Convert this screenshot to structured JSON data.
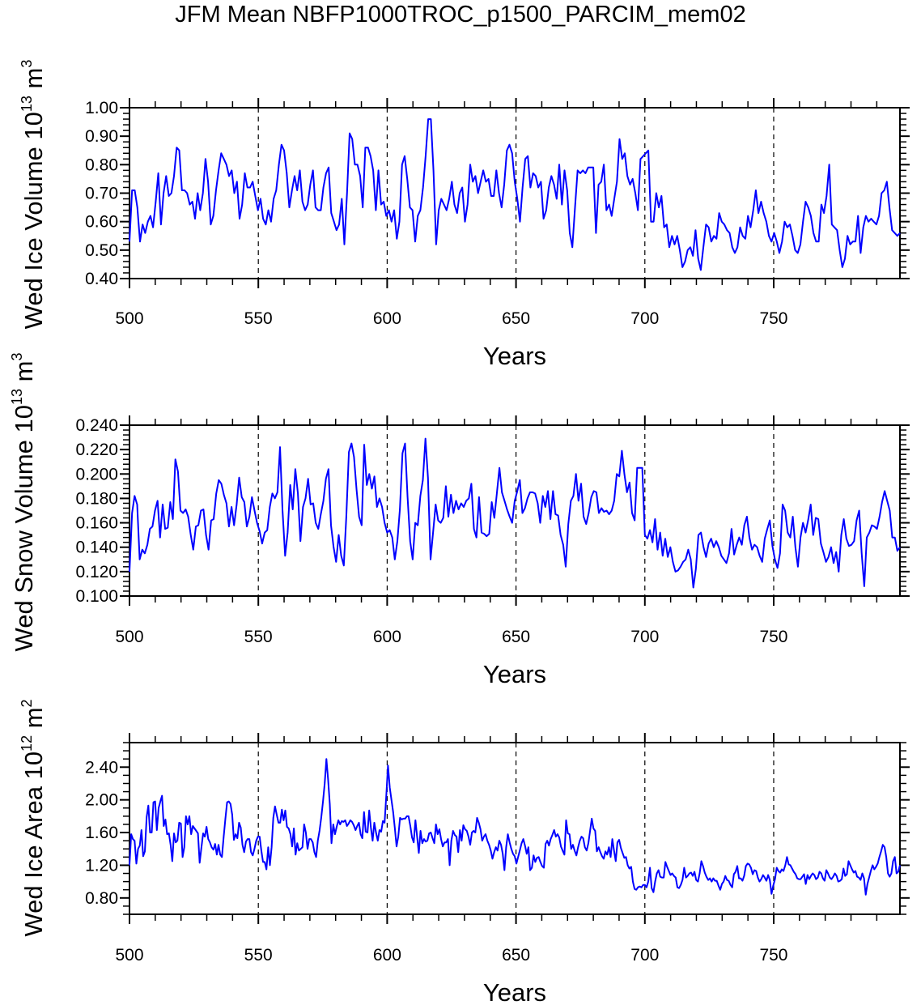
{
  "title": "JFM Mean NBFP1000TROC_p1500_PARCIM_mem02",
  "chart_data": [
    {
      "type": "line",
      "xlabel": "Years",
      "ylabel": "Wed Ice Volume 10",
      "ylabel_exp": "13",
      "ylabel_unit": " m",
      "ylabel_unit_exp": "3",
      "xlim": [
        500,
        799
      ],
      "ylim": [
        0.4,
        1.0
      ],
      "xticks": [
        500,
        550,
        600,
        650,
        700,
        750
      ],
      "xtick_labels": [
        "500",
        "550",
        "600",
        "650",
        "700",
        "750"
      ],
      "yticks": [
        0.4,
        0.5,
        0.6,
        0.7,
        0.8,
        0.9,
        1.0
      ],
      "ytick_labels": [
        "0.40",
        "0.50",
        "0.60",
        "0.70",
        "0.80",
        "0.90",
        "1.00"
      ],
      "color": "#0000ff",
      "x_start": 500,
      "values": [
        0.53,
        0.71,
        0.71,
        0.65,
        0.53,
        0.59,
        0.56,
        0.6,
        0.62,
        0.58,
        0.67,
        0.77,
        0.59,
        0.7,
        0.76,
        0.69,
        0.7,
        0.76,
        0.86,
        0.85,
        0.71,
        0.71,
        0.7,
        0.66,
        0.67,
        0.61,
        0.7,
        0.64,
        0.7,
        0.82,
        0.74,
        0.59,
        0.62,
        0.71,
        0.78,
        0.84,
        0.82,
        0.8,
        0.76,
        0.78,
        0.7,
        0.74,
        0.61,
        0.66,
        0.77,
        0.72,
        0.72,
        0.74,
        0.69,
        0.64,
        0.68,
        0.61,
        0.59,
        0.64,
        0.6,
        0.68,
        0.71,
        0.8,
        0.87,
        0.85,
        0.77,
        0.65,
        0.71,
        0.76,
        0.71,
        0.78,
        0.67,
        0.64,
        0.66,
        0.73,
        0.78,
        0.65,
        0.64,
        0.64,
        0.72,
        0.77,
        0.79,
        0.63,
        0.6,
        0.57,
        0.59,
        0.68,
        0.52,
        0.7,
        0.91,
        0.89,
        0.8,
        0.8,
        0.76,
        0.65,
        0.86,
        0.86,
        0.83,
        0.78,
        0.64,
        0.78,
        0.66,
        0.67,
        0.62,
        0.64,
        0.6,
        0.64,
        0.54,
        0.6,
        0.8,
        0.83,
        0.75,
        0.65,
        0.64,
        0.53,
        0.62,
        0.64,
        0.72,
        0.83,
        0.96,
        0.96,
        0.78,
        0.52,
        0.64,
        0.68,
        0.66,
        0.64,
        0.68,
        0.74,
        0.66,
        0.63,
        0.7,
        0.72,
        0.6,
        0.66,
        0.8,
        0.74,
        0.76,
        0.7,
        0.74,
        0.78,
        0.74,
        0.75,
        0.69,
        0.69,
        0.78,
        0.7,
        0.65,
        0.73,
        0.85,
        0.87,
        0.84,
        0.74,
        0.68,
        0.6,
        0.72,
        0.82,
        0.83,
        0.72,
        0.77,
        0.76,
        0.72,
        0.74,
        0.61,
        0.64,
        0.72,
        0.76,
        0.73,
        0.68,
        0.8,
        0.66,
        0.78,
        0.71,
        0.56,
        0.51,
        0.65,
        0.78,
        0.77,
        0.78,
        0.77,
        0.79,
        0.79,
        0.79,
        0.56,
        0.73,
        0.74,
        0.8,
        0.64,
        0.66,
        0.62,
        0.68,
        0.74,
        0.89,
        0.82,
        0.84,
        0.76,
        0.73,
        0.75,
        0.7,
        0.64,
        0.82,
        0.83,
        0.84,
        0.85,
        0.6,
        0.6,
        0.7,
        0.65,
        0.69,
        0.58,
        0.59,
        0.51,
        0.55,
        0.52,
        0.55,
        0.5,
        0.44,
        0.46,
        0.5,
        0.51,
        0.48,
        0.57,
        0.47,
        0.43,
        0.51,
        0.59,
        0.58,
        0.53,
        0.55,
        0.54,
        0.63,
        0.6,
        0.59,
        0.57,
        0.56,
        0.51,
        0.49,
        0.51,
        0.58,
        0.55,
        0.54,
        0.62,
        0.58,
        0.64,
        0.71,
        0.63,
        0.67,
        0.63,
        0.6,
        0.55,
        0.53,
        0.56,
        0.53,
        0.49,
        0.53,
        0.6,
        0.58,
        0.59,
        0.55,
        0.5,
        0.49,
        0.52,
        0.6,
        0.67,
        0.65,
        0.62,
        0.56,
        0.53,
        0.53,
        0.66,
        0.63,
        0.69,
        0.8,
        0.59,
        0.58,
        0.57,
        0.5,
        0.44,
        0.47,
        0.55,
        0.52,
        0.53,
        0.53,
        0.62,
        0.49,
        0.58,
        0.62,
        0.6,
        0.61,
        0.6,
        0.59,
        0.62,
        0.7,
        0.71,
        0.74,
        0.65,
        0.57,
        0.56,
        0.55,
        0.56
      ]
    },
    {
      "type": "line",
      "xlabel": "Years",
      "ylabel": "Wed Snow Volume 10",
      "ylabel_exp": "13",
      "ylabel_unit": " m",
      "ylabel_unit_exp": "3",
      "xlim": [
        500,
        799
      ],
      "ylim": [
        0.1,
        0.24
      ],
      "xticks": [
        500,
        550,
        600,
        650,
        700,
        750
      ],
      "xtick_labels": [
        "500",
        "550",
        "600",
        "650",
        "700",
        "750"
      ],
      "yticks": [
        0.1,
        0.12,
        0.14,
        0.16,
        0.18,
        0.2,
        0.22,
        0.24
      ],
      "ytick_labels": [
        "0.100",
        "0.120",
        "0.140",
        "0.160",
        "0.180",
        "0.200",
        "0.220",
        "0.240"
      ],
      "color": "#0000ff",
      "x_start": 500,
      "values": [
        0.12,
        0.168,
        0.182,
        0.175,
        0.13,
        0.138,
        0.135,
        0.142,
        0.155,
        0.157,
        0.17,
        0.178,
        0.148,
        0.175,
        0.155,
        0.156,
        0.177,
        0.163,
        0.212,
        0.202,
        0.17,
        0.168,
        0.171,
        0.165,
        0.15,
        0.138,
        0.157,
        0.158,
        0.17,
        0.171,
        0.15,
        0.138,
        0.162,
        0.163,
        0.184,
        0.195,
        0.192,
        0.183,
        0.176,
        0.157,
        0.173,
        0.158,
        0.175,
        0.197,
        0.181,
        0.177,
        0.157,
        0.165,
        0.181,
        0.17,
        0.16,
        0.153,
        0.143,
        0.152,
        0.154,
        0.173,
        0.184,
        0.18,
        0.185,
        0.222,
        0.17,
        0.133,
        0.152,
        0.191,
        0.171,
        0.204,
        0.184,
        0.145,
        0.173,
        0.18,
        0.196,
        0.175,
        0.176,
        0.16,
        0.155,
        0.167,
        0.178,
        0.196,
        0.204,
        0.158,
        0.14,
        0.128,
        0.15,
        0.133,
        0.125,
        0.165,
        0.218,
        0.225,
        0.214,
        0.187,
        0.165,
        0.158,
        0.224,
        0.191,
        0.2,
        0.188,
        0.198,
        0.173,
        0.18,
        0.173,
        0.16,
        0.152,
        0.154,
        0.148,
        0.13,
        0.145,
        0.171,
        0.217,
        0.225,
        0.181,
        0.145,
        0.13,
        0.16,
        0.158,
        0.182,
        0.195,
        0.229,
        0.197,
        0.13,
        0.152,
        0.175,
        0.162,
        0.16,
        0.164,
        0.19,
        0.165,
        0.183,
        0.168,
        0.178,
        0.171,
        0.176,
        0.173,
        0.178,
        0.18,
        0.192,
        0.155,
        0.148,
        0.181,
        0.152,
        0.151,
        0.149,
        0.151,
        0.177,
        0.164,
        0.184,
        0.205,
        0.185,
        0.178,
        0.171,
        0.165,
        0.16,
        0.178,
        0.186,
        0.195,
        0.168,
        0.172,
        0.18,
        0.185,
        0.185,
        0.184,
        0.176,
        0.16,
        0.182,
        0.173,
        0.186,
        0.163,
        0.186,
        0.167,
        0.166,
        0.15,
        0.142,
        0.124,
        0.159,
        0.178,
        0.182,
        0.2,
        0.178,
        0.192,
        0.165,
        0.159,
        0.168,
        0.181,
        0.186,
        0.185,
        0.168,
        0.172,
        0.169,
        0.17,
        0.167,
        0.17,
        0.178,
        0.2,
        0.198,
        0.219,
        0.2,
        0.185,
        0.193,
        0.168,
        0.162,
        0.205,
        0.205,
        0.205,
        0.15,
        0.147,
        0.154,
        0.144,
        0.163,
        0.138,
        0.152,
        0.133,
        0.147,
        0.132,
        0.14,
        0.128,
        0.12,
        0.121,
        0.124,
        0.128,
        0.13,
        0.138,
        0.13,
        0.107,
        0.122,
        0.15,
        0.152,
        0.14,
        0.132,
        0.143,
        0.147,
        0.14,
        0.145,
        0.14,
        0.133,
        0.13,
        0.127,
        0.135,
        0.155,
        0.134,
        0.142,
        0.148,
        0.142,
        0.158,
        0.165,
        0.148,
        0.138,
        0.142,
        0.14,
        0.133,
        0.128,
        0.147,
        0.155,
        0.162,
        0.141,
        0.13,
        0.123,
        0.135,
        0.175,
        0.17,
        0.152,
        0.148,
        0.165,
        0.14,
        0.124,
        0.148,
        0.16,
        0.152,
        0.162,
        0.175,
        0.15,
        0.164,
        0.163,
        0.143,
        0.136,
        0.128,
        0.132,
        0.14,
        0.127,
        0.136,
        0.12,
        0.15,
        0.163,
        0.147,
        0.141,
        0.142,
        0.145,
        0.162,
        0.17,
        0.135,
        0.108,
        0.148,
        0.152,
        0.158,
        0.157,
        0.155,
        0.165,
        0.177,
        0.186,
        0.178,
        0.17,
        0.148,
        0.148,
        0.137,
        0.14
      ]
    },
    {
      "type": "line",
      "xlabel": "Years",
      "ylabel": "Wed Ice Area 10",
      "ylabel_exp": "12",
      "ylabel_unit": " m",
      "ylabel_unit_exp": "2",
      "xlim": [
        500,
        799
      ],
      "ylim": [
        0.6,
        2.7
      ],
      "xticks": [
        500,
        550,
        600,
        650,
        700,
        750
      ],
      "xtick_labels": [
        "500",
        "550",
        "600",
        "650",
        "700",
        "750"
      ],
      "yticks": [
        0.8,
        1.2,
        1.6,
        2.0,
        2.4
      ],
      "ytick_labels": [
        "0.80",
        "1.20",
        "1.60",
        "2.00",
        "2.40"
      ],
      "color": "#0000ff",
      "x_start": 500,
      "values": [
        1.2,
        1.58,
        1.52,
        1.5,
        1.22,
        1.4,
        1.44,
        1.63,
        1.31,
        1.37,
        1.79,
        1.93,
        1.6,
        1.6,
        1.97,
        1.98,
        1.63,
        1.9,
        1.98,
        2.05,
        1.68,
        1.76,
        1.58,
        1.59,
        1.45,
        1.25,
        1.59,
        1.48,
        1.5,
        1.72,
        1.71,
        1.3,
        1.42,
        1.8,
        1.7,
        1.8,
        1.58,
        1.68,
        1.65,
        1.62,
        1.59,
        1.23,
        1.42,
        1.59,
        1.55,
        1.67,
        1.52,
        1.48,
        1.42,
        1.39,
        1.46,
        1.33,
        1.45,
        1.33,
        1.3,
        1.55,
        1.77,
        1.97,
        1.98,
        1.95,
        1.82,
        1.51,
        1.58,
        1.53,
        1.72,
        1.66,
        1.45,
        1.36,
        1.49,
        1.52,
        1.52,
        1.36,
        1.32,
        1.4,
        1.5,
        1.55,
        1.55,
        1.38,
        1.24,
        1.24,
        1.15,
        1.42,
        1.2,
        1.42,
        1.78,
        1.92,
        1.82,
        1.72,
        1.72,
        1.88,
        1.75,
        1.87,
        1.67,
        1.65,
        1.58,
        1.43,
        1.65,
        1.33,
        1.47,
        1.38,
        1.4,
        1.42,
        1.7,
        1.6,
        1.4,
        1.52,
        1.52,
        1.48,
        1.36,
        1.3,
        1.5,
        1.62,
        1.78,
        1.98,
        2.2,
        2.5,
        2.25,
        1.95,
        1.47,
        1.7,
        1.58,
        1.67,
        1.75,
        1.7,
        1.74,
        1.73,
        1.75,
        1.68,
        1.71,
        1.75,
        1.73,
        1.69,
        1.63,
        1.68,
        1.72,
        1.58,
        1.53,
        1.85,
        1.61,
        1.6,
        1.87,
        1.66,
        1.5,
        1.72,
        1.6,
        1.5,
        1.63,
        1.61,
        1.74,
        1.72,
        2.05,
        2.42,
        2.15,
        2.0,
        1.85,
        1.65,
        1.43,
        1.55,
        1.78,
        1.76,
        1.77,
        1.77,
        1.8,
        1.8,
        1.68,
        1.54,
        1.48,
        1.75,
        1.55,
        1.35,
        1.62,
        1.47,
        1.52,
        1.49,
        1.5,
        1.59,
        1.6,
        1.53,
        1.47,
        1.7,
        1.58,
        1.64,
        1.52,
        1.43,
        1.48,
        1.48,
        1.52,
        1.2,
        1.5,
        1.62,
        1.57,
        1.55,
        1.36,
        1.63,
        1.5,
        1.69,
        1.64,
        1.62,
        1.55,
        1.45,
        1.6,
        1.62,
        1.6,
        1.78,
        1.72,
        1.64,
        1.5,
        1.55,
        1.58,
        1.5,
        1.45,
        1.38,
        1.28,
        1.36,
        1.42,
        1.38,
        1.5,
        1.45,
        1.34,
        1.14,
        1.42,
        1.58,
        1.48,
        1.4,
        1.34,
        1.31,
        1.22,
        1.3,
        1.38,
        1.47,
        1.52,
        1.44,
        1.34,
        1.42,
        1.14,
        1.17,
        1.32,
        1.24,
        1.29,
        1.3,
        1.24,
        1.19,
        1.17,
        1.46,
        1.5,
        1.44,
        1.52,
        1.57,
        1.63,
        1.55,
        1.58,
        1.54,
        1.43,
        1.38,
        1.33,
        1.75,
        1.59,
        1.58,
        1.4,
        1.45,
        1.38,
        1.32,
        1.42,
        1.5,
        1.55,
        1.53,
        1.42,
        1.38,
        1.47,
        1.62,
        1.77,
        1.65,
        1.62,
        1.37,
        1.42,
        1.36,
        1.31,
        1.28,
        1.37,
        1.33,
        1.42,
        1.3,
        1.52,
        1.38,
        1.25,
        1.48,
        1.51,
        1.41,
        1.35,
        1.29,
        1.3,
        1.2,
        1.16,
        1.18,
        1.0,
        0.91,
        0.9,
        0.93,
        0.94,
        0.93,
        0.96,
        0.96,
        0.93,
        1.0,
        1.17,
        0.92,
        0.87,
        1.0,
        1.1,
        1.14,
        1.06,
        1.05,
        1.05,
        1.24,
        1.18,
        1.13,
        1.08,
        1.1,
        1.07,
        1.05,
        0.93,
        0.92,
        0.96,
        1.02,
        1.17,
        1.05,
        1.07,
        1.1,
        1.11,
        1.07,
        1.12,
        1.02,
        1.0,
        1.1,
        1.25,
        1.19,
        1.11,
        1.06,
        1.02,
        1.04,
        1.0,
        1.04,
        1.01,
        1.01,
        0.95,
        0.9,
        0.97,
        1.0,
        1.07,
        1.02,
        1.01,
        0.96,
        0.93,
        1.09,
        1.12,
        1.19,
        1.04,
        1.04,
        1.01,
        1.07,
        1.19,
        1.22,
        1.21,
        1.17,
        1.09,
        1.14,
        1.13,
        1.05,
        1.0,
        1.03,
        1.08,
        1.05,
        1.01,
        1.08,
        1.02,
        0.85,
        0.95,
        1.03,
        1.17,
        1.13,
        1.11,
        1.15,
        1.13,
        1.2,
        1.3,
        1.21,
        1.2,
        1.16,
        1.12,
        1.09,
        1.04,
        1.03,
        1.03,
        1.06,
        1.09,
        0.97,
        1.08,
        1.03,
        1.07,
        1.1,
        1.08,
        1.03,
        1.05,
        1.12,
        1.1,
        1.04,
        1.01,
        1.14,
        1.1,
        1.05,
        1.03,
        1.06,
        1.1,
        1.07,
        1.0,
        1.01,
        1.03,
        1.16,
        1.07,
        1.09,
        1.25,
        1.2,
        1.15,
        1.11,
        1.13,
        1.06,
        1.05,
        1.02,
        1.1,
        1.04,
        0.84,
        0.97,
        1.05,
        1.13,
        1.2,
        1.15,
        1.18,
        1.22,
        1.3,
        1.37,
        1.45,
        1.42,
        1.3,
        1.1,
        1.06,
        1.1,
        1.25,
        1.3,
        1.1,
        1.12,
        1.2
      ]
    }
  ]
}
